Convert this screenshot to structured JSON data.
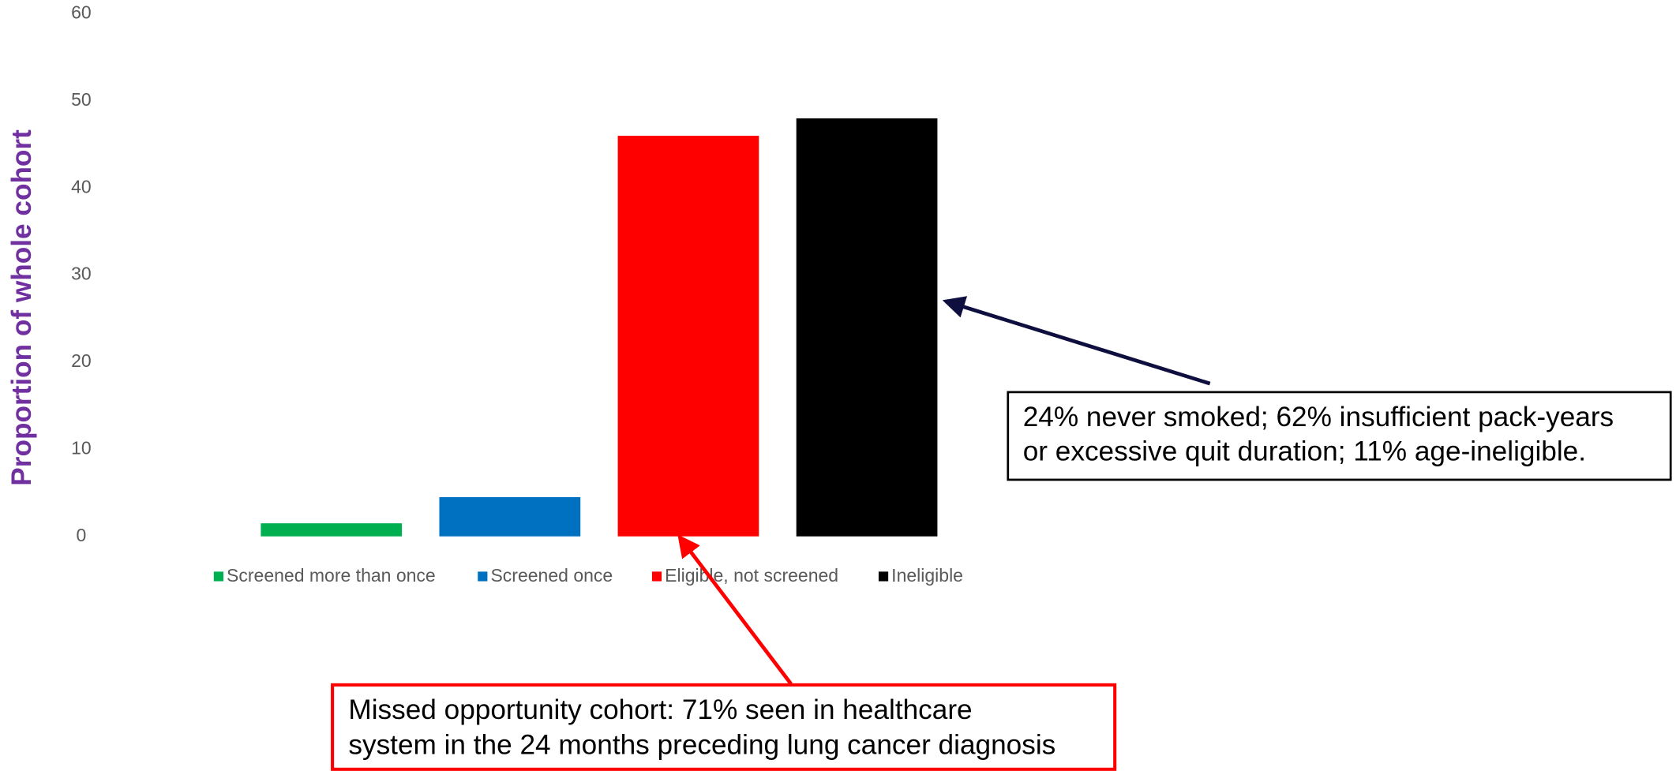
{
  "chart_data": {
    "type": "bar",
    "y_label": "Proportion of whole cohort",
    "categories": [
      "Screened more than once",
      "Screened once",
      "Eligible, not screened",
      "Ineligible"
    ],
    "values": [
      1.5,
      4.5,
      46,
      48
    ],
    "colors": [
      "#00b050",
      "#0070c0",
      "#ff0000",
      "#000000"
    ],
    "ylim": [
      0,
      60
    ],
    "yticks": [
      0,
      10,
      20,
      30,
      40,
      50,
      60
    ],
    "grid": false,
    "legend": "bottom",
    "annotations": [
      {
        "lines": [
          "24% never smoked; 62% insufficient pack-years",
          "or excessive quit duration; 11% age-ineligible."
        ],
        "color": "#000000"
      },
      {
        "lines": [
          "Missed opportunity cohort: 71% seen in healthcare",
          "system in the 24 months preceding lung cancer diagnosis"
        ],
        "color": "#ff0000"
      }
    ]
  }
}
